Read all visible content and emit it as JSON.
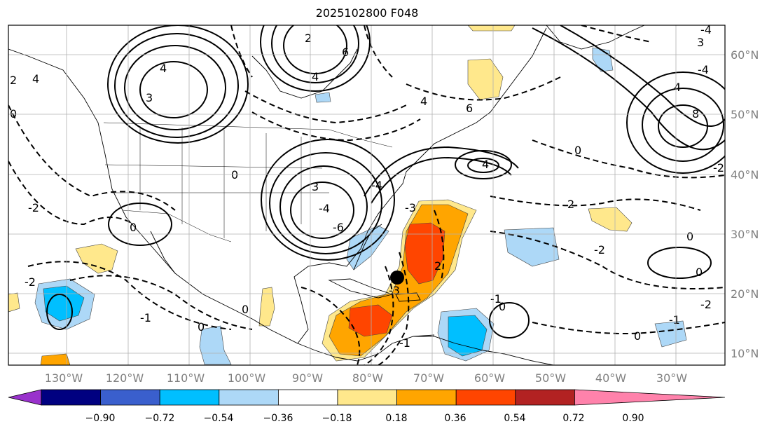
{
  "title": "2025102800 F048",
  "lon_labels": [
    "130°W",
    "120°W",
    "110°W",
    "100°W",
    "90°W",
    "80°W",
    "70°W",
    "60°W",
    "50°W",
    "40°W",
    "30°W"
  ],
  "lat_labels": [
    "60°N",
    "50°N",
    "40°N",
    "30°N",
    "20°N",
    "10°N"
  ],
  "colorbar": {
    "ticks": [
      "−0.90",
      "−0.72",
      "−0.54",
      "−0.36",
      "−0.18",
      "0.18",
      "0.36",
      "0.54",
      "0.72",
      "0.90"
    ],
    "colors": [
      "#9932cc",
      "#000080",
      "#3a5fcd",
      "#00bfff",
      "#add8f7",
      "#ffffff",
      "#ffe88c",
      "#ffa500",
      "#ff4500",
      "#b22222",
      "#ff82ab"
    ]
  },
  "contour_labels": [
    "4",
    "3",
    "0",
    "2",
    "4",
    "0",
    "-2",
    "2",
    "6",
    "4",
    "3",
    "0",
    "-4",
    "-6",
    "4",
    "-3",
    "4",
    "6",
    "8",
    "3",
    "0",
    "-2",
    "2",
    "0",
    "-2",
    "0",
    "0",
    "-1",
    "0",
    "0",
    "-1",
    "2",
    "-3",
    "4",
    "-4",
    "-4",
    "0",
    "-2",
    "-1",
    "-2",
    "-4",
    "-1"
  ],
  "marker": "storm-center"
}
